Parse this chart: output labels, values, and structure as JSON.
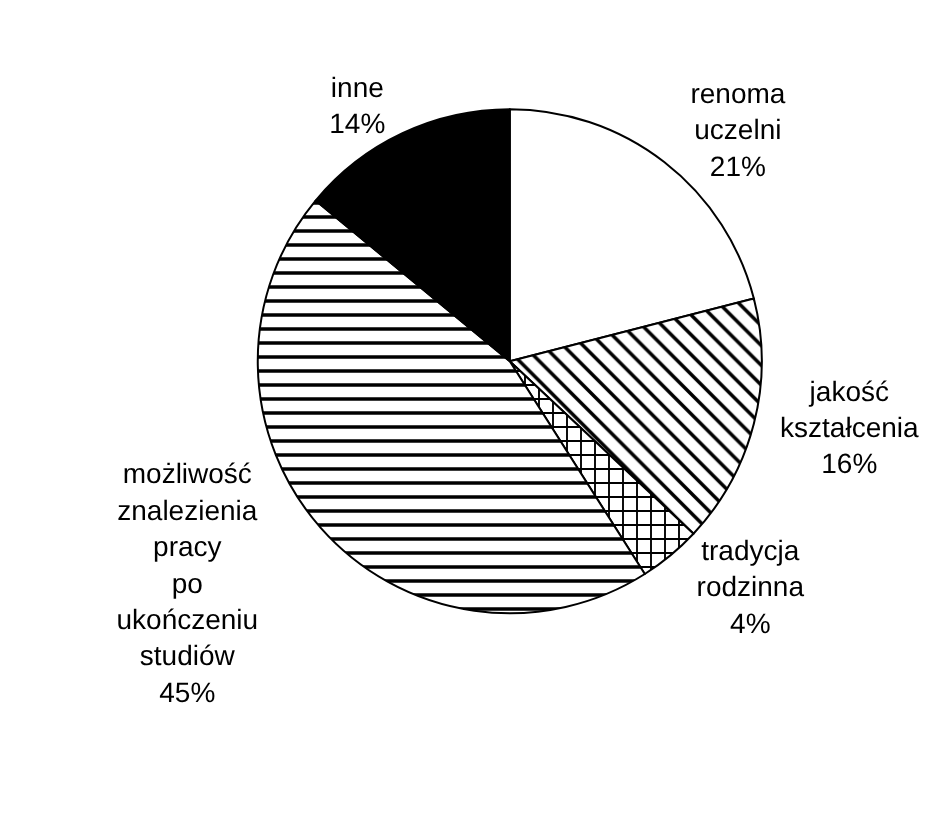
{
  "chart_data": {
    "type": "pie",
    "categories": [
      "renoma uczelni",
      "jakość kształcenia",
      "tradycja rodzinna",
      "możliwość znalezienia pracy po ukończeniu studiów",
      "inne"
    ],
    "values": [
      21,
      16,
      4,
      45,
      14
    ],
    "value_labels": [
      "21%",
      "16%",
      "4%",
      "45%",
      "14%"
    ],
    "colors": [
      "#ffffff",
      "#000000",
      "#000000",
      "#000000",
      "#000000"
    ],
    "legend": false
  }
}
